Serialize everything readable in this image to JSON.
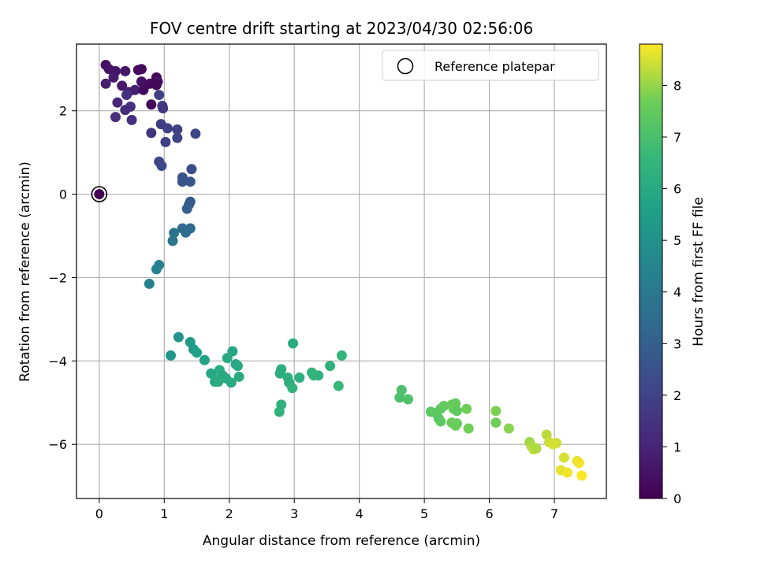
{
  "chart_data": {
    "type": "scatter",
    "title": "FOV centre drift starting at 2023/04/30 02:56:06",
    "xlabel": "Angular distance from reference (arcmin)",
    "ylabel": "Rotation from reference (arcmin)",
    "xlim": [
      -0.35,
      7.8
    ],
    "ylim": [
      -7.3,
      3.6
    ],
    "xticks": [
      0,
      1,
      2,
      3,
      4,
      5,
      6,
      7
    ],
    "yticks": [
      -6,
      -4,
      -2,
      0,
      2
    ],
    "grid": true,
    "colormap": "viridis",
    "colorbar": {
      "label": "Hours from first FF file",
      "range": [
        0,
        8.8
      ],
      "ticks": [
        0,
        1,
        2,
        3,
        4,
        5,
        6,
        7,
        8
      ]
    },
    "legend": {
      "placement": "top-right",
      "entries": [
        "Reference platepar"
      ]
    },
    "reference_point": {
      "x": 0,
      "y": 0
    },
    "points": [
      {
        "x": 0.0,
        "y": 0.0,
        "h": 0.0
      },
      {
        "x": 0.1,
        "y": 3.1,
        "h": 0.4
      },
      {
        "x": 0.15,
        "y": 3.0,
        "h": 0.5
      },
      {
        "x": 0.25,
        "y": 2.95,
        "h": 0.6
      },
      {
        "x": 0.22,
        "y": 2.8,
        "h": 0.7
      },
      {
        "x": 0.4,
        "y": 2.95,
        "h": 0.6
      },
      {
        "x": 0.6,
        "y": 2.98,
        "h": 0.3
      },
      {
        "x": 0.65,
        "y": 3.0,
        "h": 0.3
      },
      {
        "x": 0.1,
        "y": 2.65,
        "h": 0.8
      },
      {
        "x": 0.35,
        "y": 2.6,
        "h": 0.7
      },
      {
        "x": 0.45,
        "y": 2.45,
        "h": 1.0
      },
      {
        "x": 0.55,
        "y": 2.5,
        "h": 0.9
      },
      {
        "x": 0.65,
        "y": 2.7,
        "h": 0.4
      },
      {
        "x": 0.7,
        "y": 2.6,
        "h": 0.5
      },
      {
        "x": 0.68,
        "y": 2.5,
        "h": 0.3
      },
      {
        "x": 0.78,
        "y": 2.65,
        "h": 0.3
      },
      {
        "x": 0.88,
        "y": 2.8,
        "h": 0.2
      },
      {
        "x": 0.9,
        "y": 2.7,
        "h": 0.4
      },
      {
        "x": 0.88,
        "y": 2.62,
        "h": 0.2
      },
      {
        "x": 0.8,
        "y": 2.15,
        "h": 0.2
      },
      {
        "x": 0.42,
        "y": 2.38,
        "h": 1.4
      },
      {
        "x": 0.28,
        "y": 2.2,
        "h": 1.1
      },
      {
        "x": 0.48,
        "y": 2.1,
        "h": 1.5
      },
      {
        "x": 0.4,
        "y": 2.02,
        "h": 1.3
      },
      {
        "x": 0.25,
        "y": 1.85,
        "h": 1.3
      },
      {
        "x": 0.5,
        "y": 1.78,
        "h": 1.4
      },
      {
        "x": 0.92,
        "y": 2.38,
        "h": 1.9
      },
      {
        "x": 0.97,
        "y": 2.12,
        "h": 1.8
      },
      {
        "x": 0.98,
        "y": 2.06,
        "h": 1.6
      },
      {
        "x": 0.95,
        "y": 1.68,
        "h": 1.8
      },
      {
        "x": 1.05,
        "y": 1.58,
        "h": 1.9
      },
      {
        "x": 1.2,
        "y": 1.55,
        "h": 1.9
      },
      {
        "x": 1.48,
        "y": 1.45,
        "h": 2.1
      },
      {
        "x": 0.8,
        "y": 1.47,
        "h": 1.5
      },
      {
        "x": 1.2,
        "y": 1.35,
        "h": 2.0
      },
      {
        "x": 1.02,
        "y": 1.25,
        "h": 1.9
      },
      {
        "x": 0.92,
        "y": 0.78,
        "h": 2.0
      },
      {
        "x": 0.96,
        "y": 0.68,
        "h": 2.2
      },
      {
        "x": 1.42,
        "y": 0.6,
        "h": 2.3
      },
      {
        "x": 1.28,
        "y": 0.4,
        "h": 2.6
      },
      {
        "x": 1.28,
        "y": 0.3,
        "h": 2.6
      },
      {
        "x": 1.4,
        "y": 0.3,
        "h": 2.7
      },
      {
        "x": 1.4,
        "y": -0.18,
        "h": 2.8
      },
      {
        "x": 1.38,
        "y": -0.25,
        "h": 2.8
      },
      {
        "x": 1.35,
        "y": -0.35,
        "h": 3.0
      },
      {
        "x": 1.28,
        "y": -0.82,
        "h": 3.4
      },
      {
        "x": 1.4,
        "y": -0.82,
        "h": 3.3
      },
      {
        "x": 1.33,
        "y": -0.92,
        "h": 3.5
      },
      {
        "x": 1.15,
        "y": -0.93,
        "h": 3.8
      },
      {
        "x": 1.13,
        "y": -1.12,
        "h": 3.9
      },
      {
        "x": 0.92,
        "y": -1.7,
        "h": 4.2
      },
      {
        "x": 0.88,
        "y": -1.8,
        "h": 4.4
      },
      {
        "x": 0.77,
        "y": -2.15,
        "h": 4.4
      },
      {
        "x": 1.22,
        "y": -3.43,
        "h": 5.1
      },
      {
        "x": 1.4,
        "y": -3.55,
        "h": 5.4
      },
      {
        "x": 1.45,
        "y": -3.72,
        "h": 5.3
      },
      {
        "x": 1.5,
        "y": -3.8,
        "h": 5.6
      },
      {
        "x": 1.1,
        "y": -3.87,
        "h": 5.2
      },
      {
        "x": 1.62,
        "y": -3.98,
        "h": 5.7
      },
      {
        "x": 2.05,
        "y": -3.77,
        "h": 5.8
      },
      {
        "x": 1.97,
        "y": -3.93,
        "h": 6.0
      },
      {
        "x": 2.1,
        "y": -4.08,
        "h": 5.8
      },
      {
        "x": 2.13,
        "y": -4.12,
        "h": 6.0
      },
      {
        "x": 1.85,
        "y": -4.22,
        "h": 6.1
      },
      {
        "x": 1.72,
        "y": -4.3,
        "h": 5.9
      },
      {
        "x": 1.9,
        "y": -4.35,
        "h": 6.0
      },
      {
        "x": 1.8,
        "y": -4.45,
        "h": 6.1
      },
      {
        "x": 1.95,
        "y": -4.42,
        "h": 6.0
      },
      {
        "x": 2.15,
        "y": -4.38,
        "h": 6.1
      },
      {
        "x": 1.78,
        "y": -4.5,
        "h": 5.9
      },
      {
        "x": 1.83,
        "y": -4.5,
        "h": 6.1
      },
      {
        "x": 2.03,
        "y": -4.52,
        "h": 6.0
      },
      {
        "x": 2.98,
        "y": -3.58,
        "h": 6.1
      },
      {
        "x": 2.8,
        "y": -4.2,
        "h": 6.2
      },
      {
        "x": 2.78,
        "y": -4.3,
        "h": 6.1
      },
      {
        "x": 2.9,
        "y": -4.4,
        "h": 6.3
      },
      {
        "x": 2.92,
        "y": -4.52,
        "h": 6.2
      },
      {
        "x": 3.08,
        "y": -4.4,
        "h": 6.2
      },
      {
        "x": 2.97,
        "y": -4.65,
        "h": 6.4
      },
      {
        "x": 2.8,
        "y": -5.05,
        "h": 6.3
      },
      {
        "x": 2.77,
        "y": -5.22,
        "h": 6.4
      },
      {
        "x": 3.27,
        "y": -4.28,
        "h": 6.4
      },
      {
        "x": 3.3,
        "y": -4.35,
        "h": 6.5
      },
      {
        "x": 3.37,
        "y": -4.35,
        "h": 6.4
      },
      {
        "x": 3.55,
        "y": -4.12,
        "h": 6.4
      },
      {
        "x": 3.73,
        "y": -3.87,
        "h": 6.5
      },
      {
        "x": 3.68,
        "y": -4.6,
        "h": 6.6
      },
      {
        "x": 4.65,
        "y": -4.7,
        "h": 7.1
      },
      {
        "x": 4.62,
        "y": -4.88,
        "h": 7.0
      },
      {
        "x": 4.75,
        "y": -4.92,
        "h": 7.1
      },
      {
        "x": 5.1,
        "y": -5.22,
        "h": 7.3
      },
      {
        "x": 5.18,
        "y": -5.25,
        "h": 7.4
      },
      {
        "x": 5.25,
        "y": -5.15,
        "h": 7.4
      },
      {
        "x": 5.3,
        "y": -5.08,
        "h": 7.5
      },
      {
        "x": 5.22,
        "y": -5.38,
        "h": 7.3
      },
      {
        "x": 5.25,
        "y": -5.45,
        "h": 7.4
      },
      {
        "x": 5.42,
        "y": -5.05,
        "h": 7.6
      },
      {
        "x": 5.48,
        "y": -5.02,
        "h": 7.5
      },
      {
        "x": 5.45,
        "y": -5.15,
        "h": 7.6
      },
      {
        "x": 5.5,
        "y": -5.2,
        "h": 7.4
      },
      {
        "x": 5.42,
        "y": -5.48,
        "h": 7.6
      },
      {
        "x": 5.5,
        "y": -5.5,
        "h": 7.5
      },
      {
        "x": 5.48,
        "y": -5.55,
        "h": 7.6
      },
      {
        "x": 5.65,
        "y": -5.15,
        "h": 7.7
      },
      {
        "x": 5.68,
        "y": -5.62,
        "h": 7.7
      },
      {
        "x": 6.1,
        "y": -5.2,
        "h": 7.8
      },
      {
        "x": 6.1,
        "y": -5.48,
        "h": 7.7
      },
      {
        "x": 6.3,
        "y": -5.62,
        "h": 7.9
      },
      {
        "x": 6.62,
        "y": -5.95,
        "h": 8.1
      },
      {
        "x": 6.65,
        "y": -6.05,
        "h": 8.2
      },
      {
        "x": 6.68,
        "y": -6.12,
        "h": 8.3
      },
      {
        "x": 6.72,
        "y": -6.1,
        "h": 8.2
      },
      {
        "x": 6.88,
        "y": -5.77,
        "h": 8.3
      },
      {
        "x": 6.92,
        "y": -5.95,
        "h": 8.4
      },
      {
        "x": 7.03,
        "y": -5.97,
        "h": 8.4
      },
      {
        "x": 6.98,
        "y": -6.0,
        "h": 8.5
      },
      {
        "x": 7.15,
        "y": -6.32,
        "h": 8.5
      },
      {
        "x": 7.35,
        "y": -6.4,
        "h": 8.6
      },
      {
        "x": 7.38,
        "y": -6.45,
        "h": 8.7
      },
      {
        "x": 7.1,
        "y": -6.62,
        "h": 8.6
      },
      {
        "x": 7.2,
        "y": -6.68,
        "h": 8.7
      },
      {
        "x": 7.42,
        "y": -6.75,
        "h": 8.8
      }
    ]
  }
}
